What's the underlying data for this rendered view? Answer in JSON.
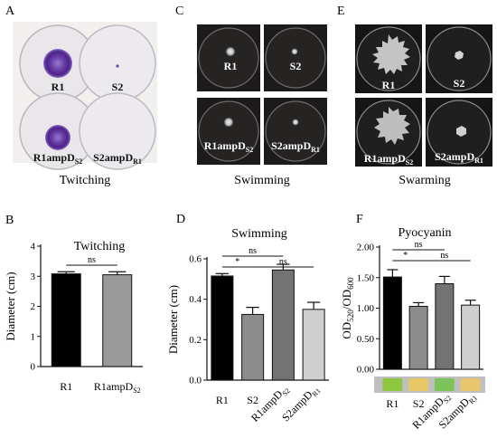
{
  "panels": {
    "A": {
      "letter": "A",
      "caption": "Twitching",
      "dishes": [
        {
          "label": "R1",
          "sub": ""
        },
        {
          "label": "S2",
          "sub": ""
        },
        {
          "label": "R1ampD",
          "sub": "S2"
        },
        {
          "label": "S2ampD",
          "sub": "R1"
        }
      ]
    },
    "C": {
      "letter": "C",
      "caption": "Swimming",
      "dishes": [
        {
          "label": "R1",
          "sub": ""
        },
        {
          "label": "S2",
          "sub": ""
        },
        {
          "label": "R1ampD",
          "sub": "S2"
        },
        {
          "label": "S2ampD",
          "sub": "R1"
        }
      ]
    },
    "E": {
      "letter": "E",
      "caption": "Swarming",
      "dishes": [
        {
          "label": "R1",
          "sub": ""
        },
        {
          "label": "S2",
          "sub": ""
        },
        {
          "label": "R1ampD",
          "sub": "S2"
        },
        {
          "label": "S2ampD",
          "sub": "R1"
        }
      ]
    },
    "F_strip": {
      "colors": [
        "#8ec63f",
        "#e8c766",
        "#7cc35a",
        "#e7c66c"
      ]
    }
  },
  "chart_data": [
    {
      "id": "B",
      "letter": "B",
      "type": "bar",
      "title": "Twitching",
      "ylabel": "Diameter (cm)",
      "ylim": [
        0,
        4
      ],
      "yticks": [
        "0",
        "1",
        "2",
        "3",
        "4"
      ],
      "categories": [
        {
          "main": "R1",
          "sub": ""
        },
        {
          "main": "R1ampD",
          "sub": "S2"
        }
      ],
      "values": [
        3.08,
        3.05
      ],
      "errors": [
        0.07,
        0.1
      ],
      "colors": [
        "#000000",
        "#9a9a9a"
      ],
      "sig": [
        {
          "from": 0,
          "to": 1,
          "label": "ns"
        }
      ]
    },
    {
      "id": "D",
      "letter": "D",
      "type": "bar",
      "title": "Swimming",
      "ylabel": "Diameter (cm)",
      "ylim": [
        0,
        0.6
      ],
      "yticks": [
        "0.0",
        "0.2",
        "0.4",
        "0.6"
      ],
      "categories": [
        {
          "main": "R1",
          "sub": ""
        },
        {
          "main": "S2",
          "sub": ""
        },
        {
          "main": "R1ampD",
          "sub": "S2"
        },
        {
          "main": "S2ampD",
          "sub": "R1"
        }
      ],
      "values": [
        0.515,
        0.325,
        0.545,
        0.35
      ],
      "errors": [
        0.012,
        0.035,
        0.028,
        0.035
      ],
      "colors": [
        "#000000",
        "#8c8c8c",
        "#737373",
        "#cfcfcf"
      ],
      "sig": [
        {
          "from": 0,
          "to": 1,
          "label": "*"
        },
        {
          "from": 0,
          "to": 2,
          "label": "ns"
        },
        {
          "from": 1,
          "to": 3,
          "label": "ns"
        }
      ]
    },
    {
      "id": "F",
      "letter": "F",
      "type": "bar",
      "title": "Pyocyanin",
      "ylabel": "OD520/OD600",
      "ylabel_parts": {
        "a": "OD",
        "a_sub": "520",
        "slash": "/OD",
        "b_sub": "600"
      },
      "ylim": [
        0,
        2.0
      ],
      "yticks": [
        "0.00",
        "0.50",
        "1.00",
        "1.50",
        "2.00"
      ],
      "categories": [
        {
          "main": "R1",
          "sub": ""
        },
        {
          "main": "S2",
          "sub": ""
        },
        {
          "main": "R1ampD",
          "sub": "S2"
        },
        {
          "main": "S2ampD",
          "sub": "R1"
        }
      ],
      "values": [
        1.51,
        1.03,
        1.4,
        1.05
      ],
      "errors": [
        0.12,
        0.06,
        0.12,
        0.08
      ],
      "colors": [
        "#000000",
        "#8c8c8c",
        "#737373",
        "#cfcfcf"
      ],
      "sig": [
        {
          "from": 0,
          "to": 1,
          "label": "*"
        },
        {
          "from": 0,
          "to": 2,
          "label": "ns"
        },
        {
          "from": 1,
          "to": 3,
          "label": "ns"
        }
      ]
    }
  ]
}
